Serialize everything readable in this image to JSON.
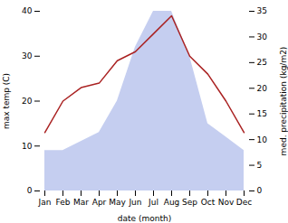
{
  "chart_data": {
    "type": "line",
    "xlabel": "date (month)",
    "ylabel": "max temp (C)",
    "y2label": "med. precipitation (kg/m2)",
    "categories": [
      "Jan",
      "Feb",
      "Mar",
      "Apr",
      "May",
      "Jun",
      "Jul",
      "Aug",
      "Sep",
      "Oct",
      "Nov",
      "Dec"
    ],
    "series": [
      {
        "type": "area",
        "color": "#c5cef0",
        "values": [
          9,
          9,
          11,
          13,
          20,
          32,
          40,
          40,
          30,
          15,
          12,
          9
        ]
      },
      {
        "type": "line",
        "color": "#aa2222",
        "values": [
          13,
          20,
          23,
          24,
          29,
          31,
          35,
          39,
          30,
          26,
          20,
          13
        ]
      }
    ],
    "ylim": [
      0,
      40
    ],
    "yticks": [
      0,
      10,
      20,
      30,
      40
    ],
    "y2lim": [
      0,
      35
    ],
    "y2ticks": [
      0,
      5,
      10,
      15,
      20,
      25,
      30,
      35
    ],
    "grid": false
  }
}
